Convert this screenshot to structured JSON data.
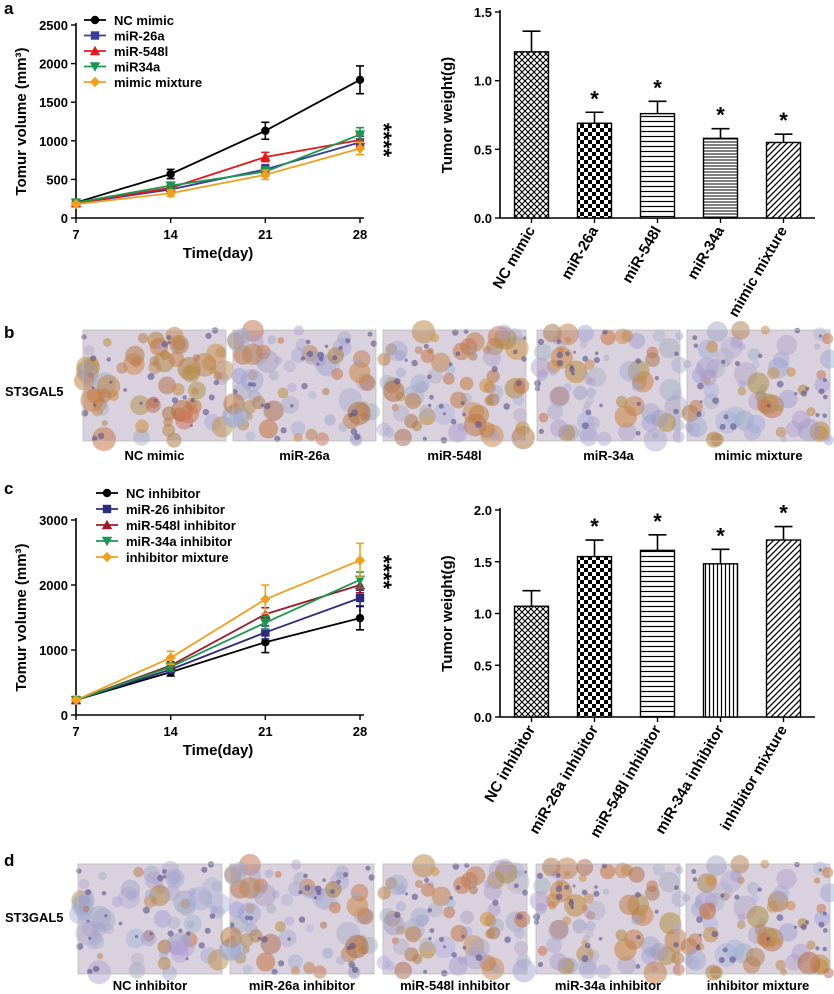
{
  "panels": {
    "a": "a",
    "b": "b",
    "c": "c",
    "d": "d"
  },
  "chart_data": [
    {
      "id": "a_line",
      "type": "line",
      "xlabel": "Time(day)",
      "ylabel": "Tomur volume (mm³)",
      "x": [
        7,
        14,
        21,
        28
      ],
      "xlim": [
        7,
        28
      ],
      "ylim": [
        0,
        2500
      ],
      "yticks": [
        0,
        500,
        1000,
        1500,
        2000,
        2500
      ],
      "legend_position": "top-left",
      "significance": "****",
      "series": [
        {
          "name": "NC mimic",
          "color": "#000000",
          "marker": "circle",
          "values": [
            200,
            570,
            1130,
            1790
          ],
          "errors": [
            20,
            60,
            110,
            180
          ]
        },
        {
          "name": "miR-26a",
          "color": "#3b3b98",
          "marker": "square",
          "values": [
            190,
            370,
            630,
            980
          ],
          "errors": [
            15,
            40,
            60,
            80
          ]
        },
        {
          "name": "miR-548l",
          "color": "#e41a1c",
          "marker": "triangle-up",
          "values": [
            195,
            390,
            790,
            1010
          ],
          "errors": [
            15,
            40,
            60,
            80
          ]
        },
        {
          "name": "miR34a",
          "color": "#1a9850",
          "marker": "triangle-down",
          "values": [
            200,
            420,
            600,
            1080
          ],
          "errors": [
            15,
            40,
            60,
            90
          ]
        },
        {
          "name": "mimic mixture",
          "color": "#f0a020",
          "marker": "diamond",
          "values": [
            180,
            320,
            560,
            900
          ],
          "errors": [
            15,
            40,
            60,
            80
          ]
        }
      ]
    },
    {
      "id": "a_bar",
      "type": "bar",
      "ylabel": "Tumor weight(g)",
      "categories": [
        "NC mimic",
        "miR-26a",
        "miR-548l",
        "miR-34a",
        "mimic mixture"
      ],
      "values": [
        1.21,
        0.69,
        0.76,
        0.58,
        0.55
      ],
      "errors": [
        0.15,
        0.08,
        0.09,
        0.07,
        0.06
      ],
      "patterns": [
        "cross",
        "checker",
        "hlines",
        "dense-hlines",
        "diag"
      ],
      "significance": [
        "",
        "*",
        "*",
        "*",
        "*"
      ],
      "ylim": [
        0,
        1.5
      ],
      "yticks": [
        "0.0",
        "0.5",
        "1.0",
        "1.5"
      ]
    },
    {
      "id": "c_line",
      "type": "line",
      "xlabel": "Time(day)",
      "ylabel": "Tomur volume (mm³)",
      "x": [
        7,
        14,
        21,
        28
      ],
      "xlim": [
        7,
        28
      ],
      "ylim": [
        0,
        3000
      ],
      "yticks": [
        0,
        1000,
        2000,
        3000
      ],
      "legend_position": "top-left",
      "significance": "****",
      "series": [
        {
          "name": "NC inhibitor",
          "color": "#000000",
          "marker": "circle",
          "values": [
            230,
            660,
            1120,
            1490
          ],
          "errors": [
            20,
            60,
            160,
            180
          ]
        },
        {
          "name": "miR-26 inhibitor",
          "color": "#2c2c7a",
          "marker": "square",
          "values": [
            230,
            700,
            1270,
            1800
          ],
          "errors": [
            20,
            60,
            100,
            120
          ]
        },
        {
          "name": "miR-548l inhibitor",
          "color": "#a0182a",
          "marker": "triangle-up",
          "values": [
            230,
            760,
            1550,
            2000
          ],
          "errors": [
            20,
            60,
            100,
            120
          ]
        },
        {
          "name": "miR-34a inhibitor",
          "color": "#1a9850",
          "marker": "triangle-down",
          "values": [
            230,
            740,
            1420,
            2080
          ],
          "errors": [
            20,
            60,
            100,
            120
          ]
        },
        {
          "name": "inhibitor mixture",
          "color": "#f0a020",
          "marker": "diamond",
          "values": [
            230,
            880,
            1780,
            2380
          ],
          "errors": [
            20,
            100,
            220,
            260
          ]
        }
      ]
    },
    {
      "id": "c_bar",
      "type": "bar",
      "ylabel": "Tumor weight(g)",
      "categories": [
        "NC inhibitor",
        "miR-26a inhibitor",
        "miR-548l inhibitor",
        "miR-34a inhibitor",
        "inhibitor mixture"
      ],
      "values": [
        1.07,
        1.55,
        1.61,
        1.48,
        1.71
      ],
      "errors": [
        0.15,
        0.16,
        0.15,
        0.14,
        0.13
      ],
      "patterns": [
        "cross",
        "checker",
        "hlines",
        "vlines",
        "diag"
      ],
      "significance": [
        "",
        "*",
        "*",
        "*",
        "*"
      ],
      "ylim": [
        0,
        2.0
      ],
      "yticks": [
        "0.0",
        "0.5",
        "1.0",
        "1.5",
        "2.0"
      ]
    }
  ],
  "ihc_b": {
    "row_label": "ST3GAL5",
    "captions": [
      "NC mimic",
      "miR-26a",
      "miR-548l",
      "miR-34a",
      "mimic mixture"
    ],
    "stain_intensity": [
      0.85,
      0.45,
      0.5,
      0.3,
      0.4
    ]
  },
  "ihc_d": {
    "row_label": "ST3GAL5",
    "captions": [
      "NC inhibitor",
      "miR-26a inhibitor",
      "miR-548l inhibitor",
      "miR-34a inhibitor",
      "inhibitor mixture"
    ],
    "stain_intensity": [
      0.25,
      0.5,
      0.3,
      0.5,
      0.55
    ]
  }
}
